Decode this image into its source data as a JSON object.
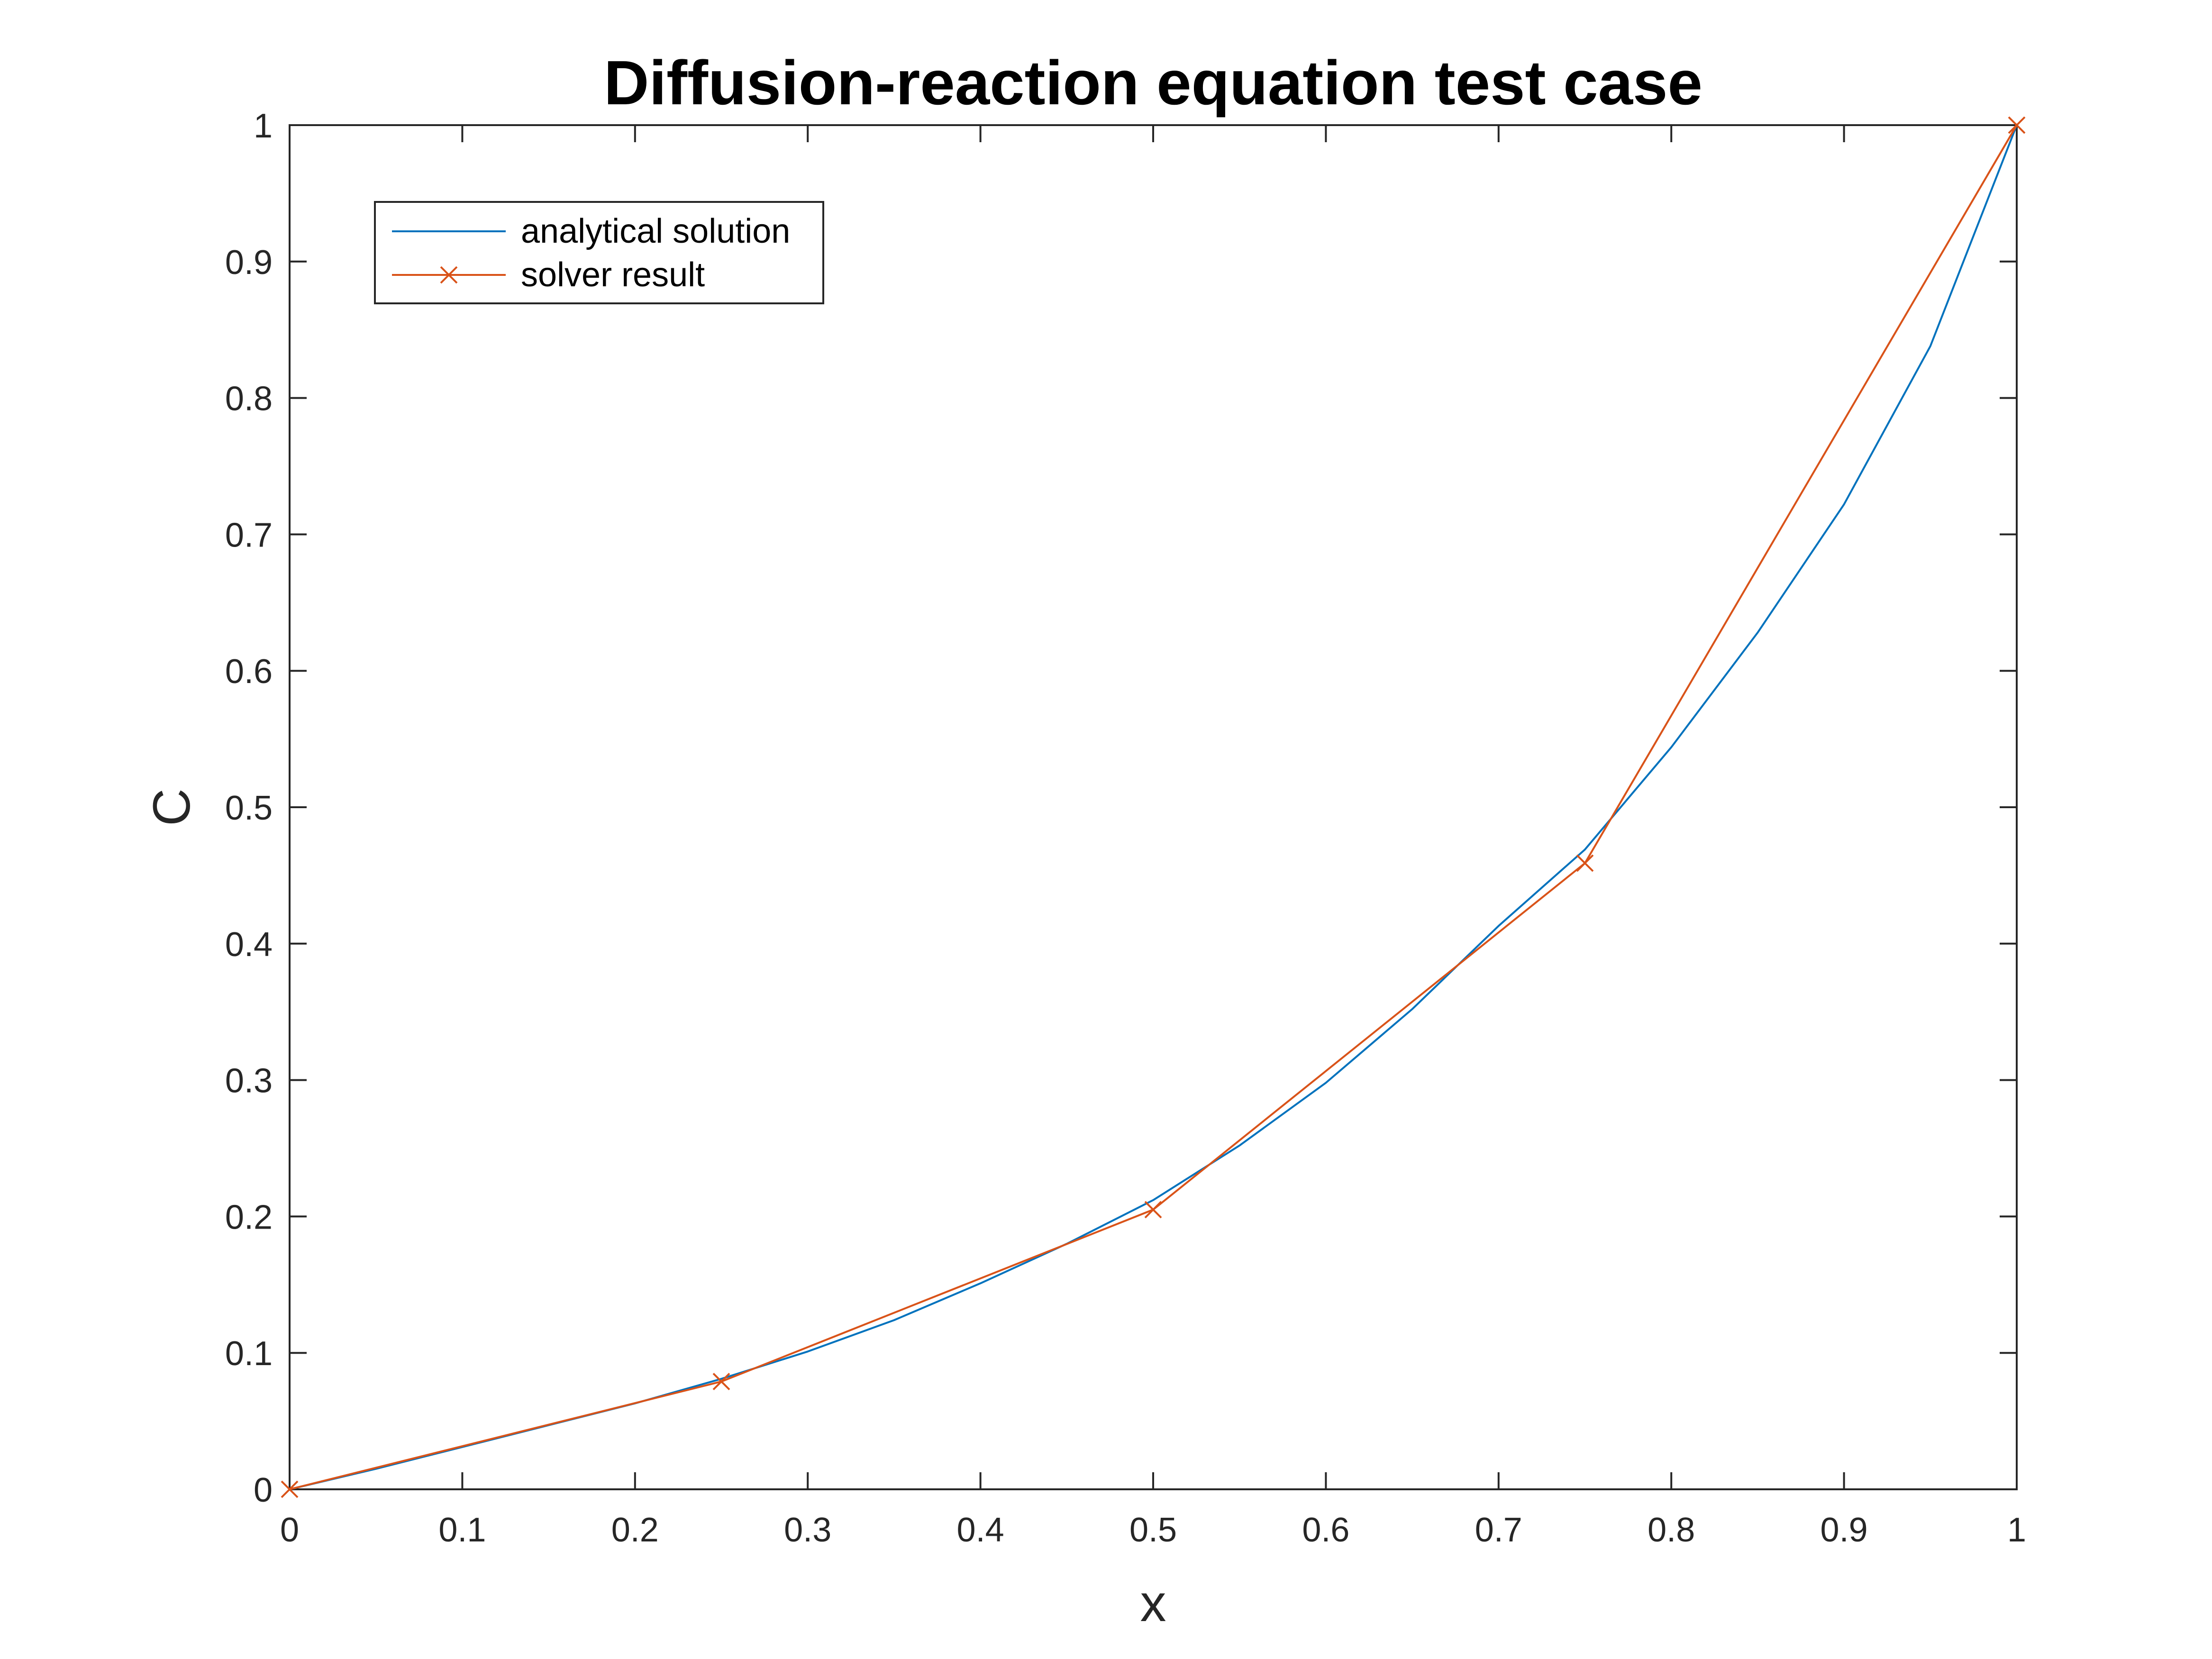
{
  "chart_data": {
    "type": "line",
    "title": "Diffusion-reaction equation test case",
    "xlabel": "x",
    "ylabel": "C",
    "xlim": [
      0,
      1
    ],
    "ylim": [
      0,
      1
    ],
    "xticks": [
      "0",
      "0.1",
      "0.2",
      "0.3",
      "0.4",
      "0.5",
      "0.6",
      "0.7",
      "0.8",
      "0.9",
      "1"
    ],
    "yticks": [
      "0",
      "0.1",
      "0.2",
      "0.3",
      "0.4",
      "0.5",
      "0.6",
      "0.7",
      "0.8",
      "0.9",
      "1"
    ],
    "grid": false,
    "legend_position": "top-left",
    "series": [
      {
        "name": "analytical solution",
        "color": "#0072BD",
        "marker": "none",
        "x": [
          0,
          0.05,
          0.1,
          0.15,
          0.2,
          0.25,
          0.3,
          0.35,
          0.4,
          0.45,
          0.5,
          0.55,
          0.6,
          0.65,
          0.7,
          0.75,
          0.8,
          0.85,
          0.9,
          0.95,
          1
        ],
        "y": [
          0,
          0.015,
          0.031,
          0.047,
          0.063,
          0.081,
          0.101,
          0.124,
          0.151,
          0.18,
          0.212,
          0.252,
          0.298,
          0.352,
          0.413,
          0.469,
          0.544,
          0.628,
          0.722,
          0.838,
          1.0
        ]
      },
      {
        "name": "solver result",
        "color": "#D95319",
        "marker": "x",
        "x": [
          0,
          0.25,
          0.5,
          0.75,
          1
        ],
        "y": [
          0,
          0.079,
          0.205,
          0.459,
          1.0
        ]
      }
    ]
  }
}
